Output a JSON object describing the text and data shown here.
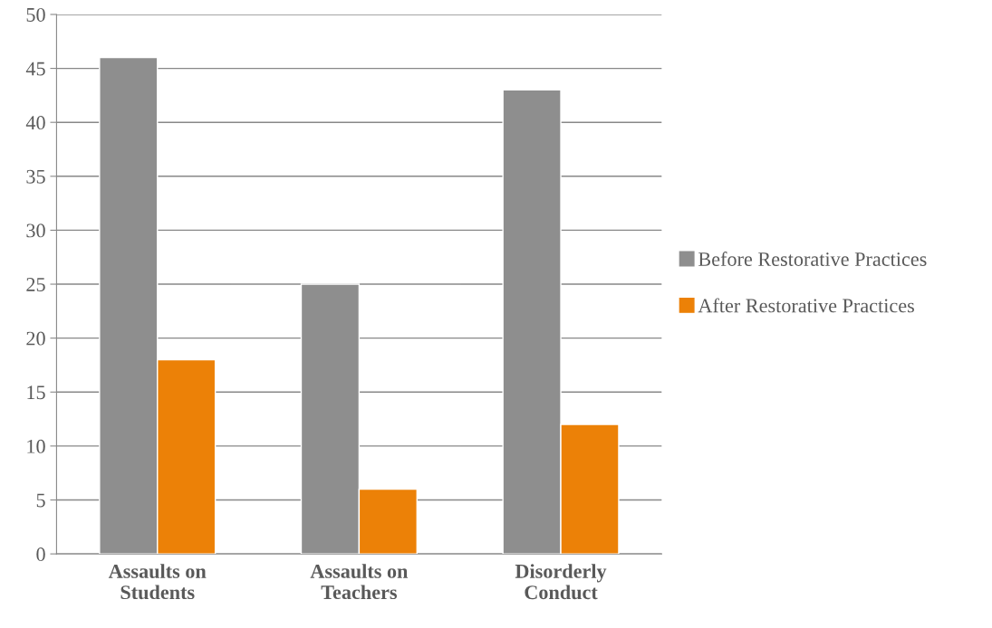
{
  "chart_data": {
    "type": "bar",
    "categories": [
      "Assaults on Students",
      "Assaults on Teachers",
      "Disorderly Conduct"
    ],
    "series": [
      {
        "name": "Before Restorative Practices",
        "color": "#8e8e8e",
        "values": [
          46,
          25,
          43
        ]
      },
      {
        "name": "After Restorative Practices",
        "color": "#ec8107",
        "values": [
          18,
          6,
          12
        ]
      }
    ],
    "ylim": [
      0,
      50
    ],
    "yticks": [
      0,
      5,
      10,
      15,
      20,
      25,
      30,
      35,
      40,
      45,
      50
    ],
    "grid": "y",
    "legend": "right"
  }
}
